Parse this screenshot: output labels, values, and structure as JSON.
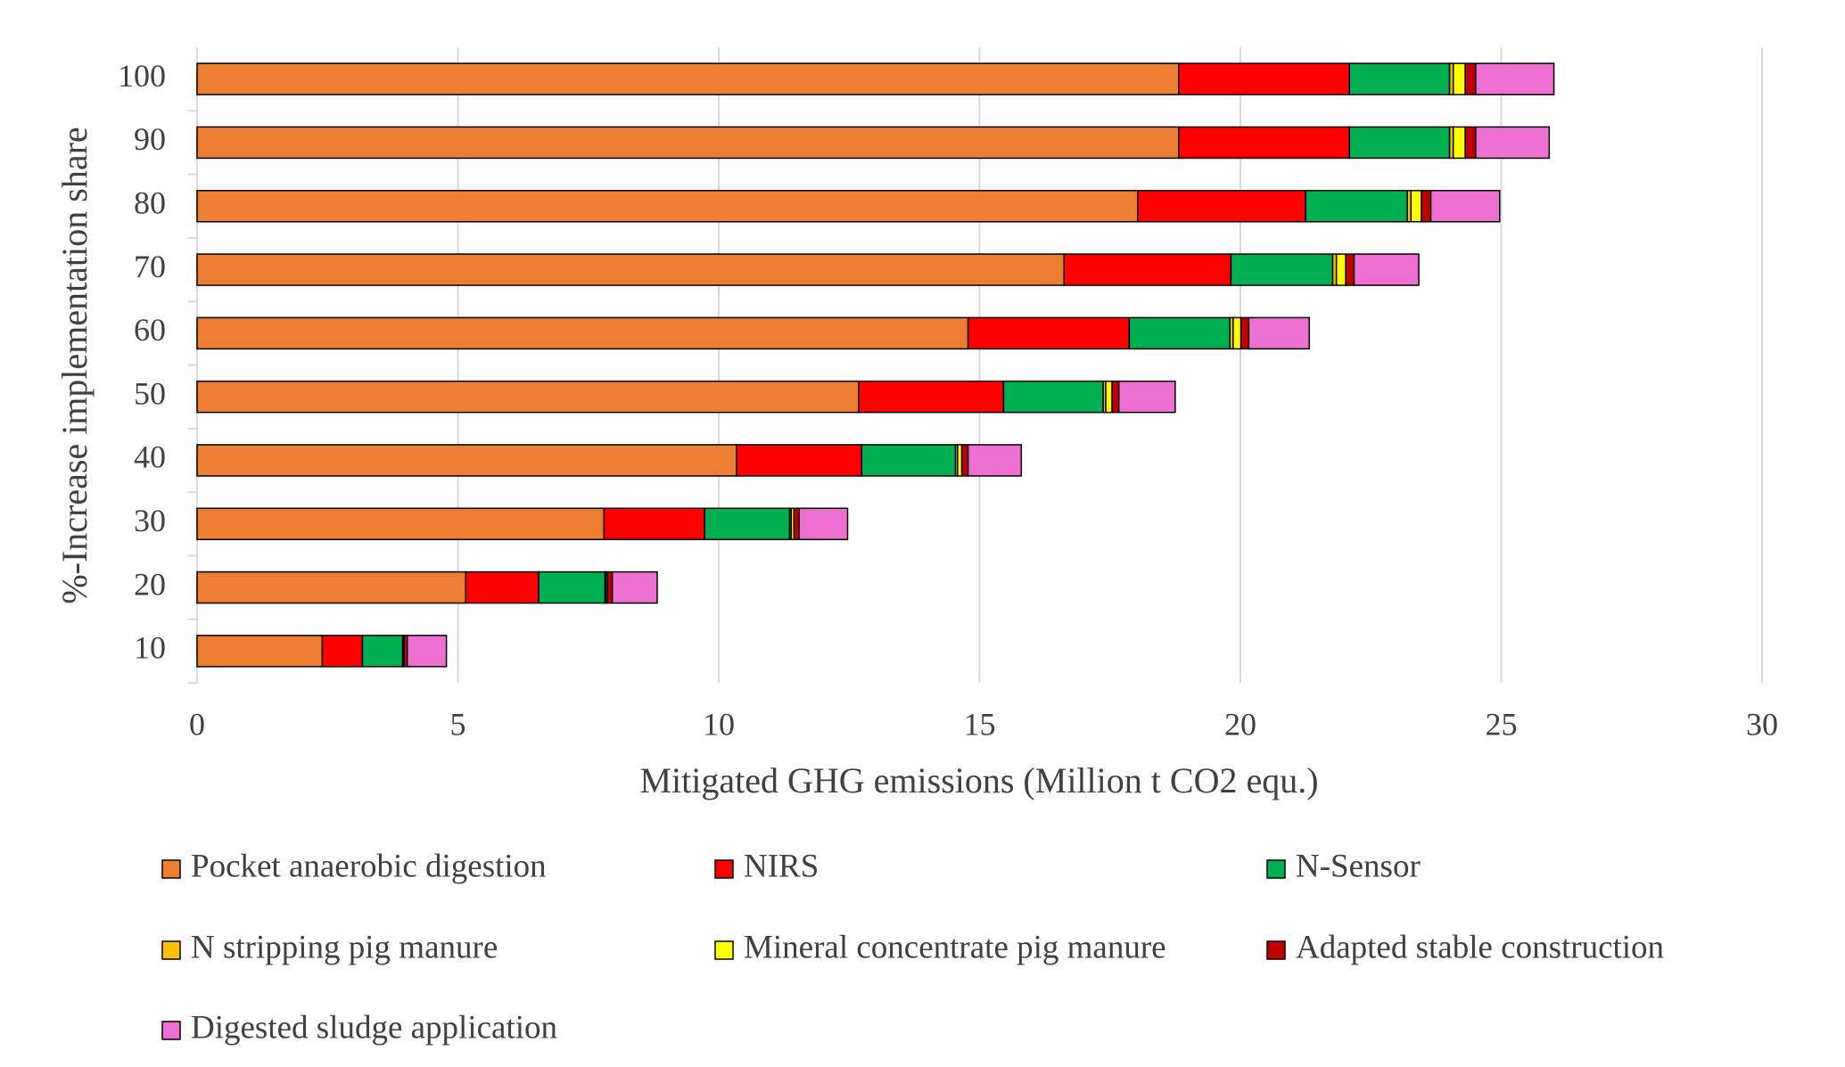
{
  "chart_data": {
    "type": "stacked_barh",
    "xlabel": "Mitigated GHG emissions  (Million t CO2 equ.)",
    "ylabel": "%-Increase implementation share",
    "categories": [
      "10",
      "20",
      "30",
      "40",
      "50",
      "60",
      "70",
      "80",
      "90",
      "100"
    ],
    "series": [
      {
        "name": "Pocket anaerobic digestion",
        "color": "#ed7d31",
        "values": [
          2.4,
          5.15,
          7.8,
          10.34,
          12.68,
          14.78,
          16.62,
          18.03,
          18.82,
          18.82
        ]
      },
      {
        "name": "NIRS",
        "color": "#ff0000",
        "values": [
          0.77,
          1.4,
          1.93,
          2.4,
          2.78,
          3.09,
          3.2,
          3.22,
          3.27,
          3.27
        ]
      },
      {
        "name": "N-Sensor",
        "color": "#00b050",
        "values": [
          0.77,
          1.27,
          1.63,
          1.8,
          1.91,
          1.93,
          1.95,
          1.95,
          1.92,
          1.92
        ]
      },
      {
        "name": "N stripping pig manure",
        "color": "#ffc000",
        "values": [
          0.01,
          0.02,
          0.03,
          0.04,
          0.05,
          0.06,
          0.07,
          0.07,
          0.07,
          0.07
        ]
      },
      {
        "name": "Mineral concentrate pig manure",
        "color": "#ffff00",
        "values": [
          0.02,
          0.03,
          0.05,
          0.08,
          0.12,
          0.15,
          0.18,
          0.2,
          0.23,
          0.23
        ]
      },
      {
        "name": "Adapted stable construction",
        "color": "#c00000",
        "values": [
          0.06,
          0.09,
          0.1,
          0.12,
          0.13,
          0.15,
          0.16,
          0.18,
          0.2,
          0.2
        ]
      },
      {
        "name": "Digested sludge application",
        "color": "#ee6fd2",
        "values": [
          0.75,
          0.86,
          0.93,
          1.02,
          1.08,
          1.16,
          1.24,
          1.32,
          1.41,
          1.5
        ]
      }
    ],
    "xlim": [
      0,
      30
    ],
    "xticks": [
      0,
      5,
      10,
      15,
      20,
      25,
      30
    ],
    "grid": true
  }
}
